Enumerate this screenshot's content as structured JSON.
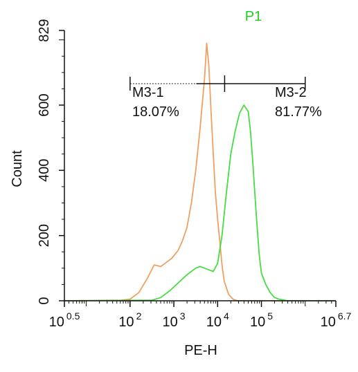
{
  "chart_data": {
    "type": "line",
    "title": "P1",
    "title_color": "#22cc22",
    "xlabel": "PE-H",
    "ylabel": "Count",
    "x_scale": "log10",
    "xlim": [
      0.5,
      6.7
    ],
    "ylim": [
      0,
      829
    ],
    "x_ticks": [
      {
        "base": "10",
        "exp": "0.5",
        "value": 0.5
      },
      {
        "base": "10",
        "exp": "2",
        "value": 2
      },
      {
        "base": "10",
        "exp": "3",
        "value": 3
      },
      {
        "base": "10",
        "exp": "4",
        "value": 4
      },
      {
        "base": "10",
        "exp": "5",
        "value": 5
      },
      {
        "base": "10",
        "exp": "6.7",
        "value": 6.7
      }
    ],
    "y_ticks": [
      {
        "label": "0",
        "value": 0
      },
      {
        "label": "200",
        "value": 200
      },
      {
        "label": "400",
        "value": 400
      },
      {
        "label": "600",
        "value": 600
      },
      {
        "label": "829",
        "value": 829
      }
    ],
    "series": [
      {
        "color": "#f0a060",
        "x": [
          0.5,
          1.8,
          2.0,
          2.2,
          2.4,
          2.55,
          2.7,
          2.8,
          2.95,
          3.1,
          3.2,
          3.3,
          3.4,
          3.5,
          3.6,
          3.7,
          3.75,
          3.8,
          3.85,
          3.9,
          3.95,
          4.0,
          4.05,
          4.1,
          4.15,
          4.25,
          4.35,
          4.45,
          6.7
        ],
        "y": [
          0,
          2,
          5,
          25,
          70,
          110,
          105,
          115,
          130,
          155,
          185,
          225,
          300,
          400,
          530,
          680,
          790,
          720,
          580,
          450,
          330,
          250,
          180,
          110,
          60,
          20,
          5,
          0,
          0
        ]
      },
      {
        "color": "#44dd44",
        "x": [
          0.5,
          2.5,
          2.7,
          2.9,
          3.1,
          3.3,
          3.5,
          3.6,
          3.7,
          3.8,
          3.9,
          4.0,
          4.1,
          4.2,
          4.3,
          4.4,
          4.5,
          4.6,
          4.7,
          4.75,
          4.8,
          4.85,
          4.9,
          4.95,
          5.0,
          5.1,
          5.2,
          5.3,
          5.4,
          5.6,
          6.7
        ],
        "y": [
          0,
          2,
          10,
          30,
          55,
          80,
          100,
          105,
          100,
          95,
          90,
          115,
          200,
          330,
          450,
          520,
          575,
          600,
          580,
          520,
          430,
          330,
          230,
          140,
          85,
          50,
          25,
          10,
          5,
          0,
          0
        ]
      }
    ],
    "gates": [
      {
        "name": "M3-1",
        "percent": "18.07%",
        "x_start": 2.0,
        "x_end": 4.16
      },
      {
        "name": "M3-2",
        "percent": "81.77%",
        "x_start": 4.16,
        "x_end": 6.0
      }
    ]
  }
}
